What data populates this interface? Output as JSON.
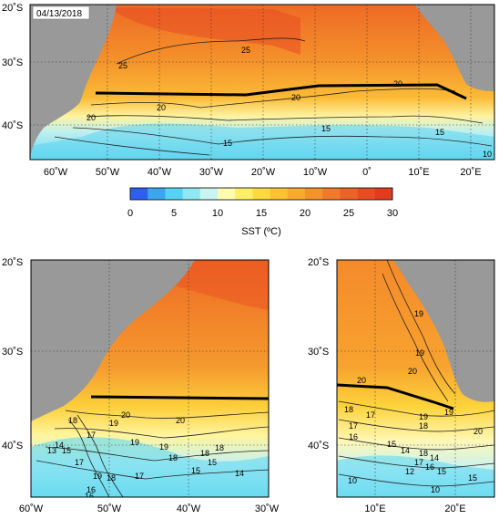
{
  "date_label": "04/13/2018",
  "colorbar": {
    "ticks": [
      "0",
      "5",
      "10",
      "15",
      "20",
      "25",
      "30"
    ],
    "label": "SST (ºC)",
    "colors": [
      "#2f5ff0",
      "#3aa6f2",
      "#56d3f4",
      "#8ee9f2",
      "#c8f4f2",
      "#fffbb0",
      "#ffef66",
      "#ffd93e",
      "#fcc233",
      "#f9aa2f",
      "#f5922c",
      "#f07a29",
      "#ec6425",
      "#e84d22",
      "#e43a1e"
    ]
  },
  "colors": {
    "land": "#999999",
    "line_black": "#000000"
  },
  "top_map": {
    "lat_labels": [
      "20˚S",
      "30˚S",
      "40˚S"
    ],
    "lon_labels": [
      "60˚W",
      "50˚W",
      "40˚W",
      "30˚W",
      "20˚W",
      "10˚W",
      "0˚",
      "10˚E",
      "20˚E"
    ],
    "contour_labels": [
      "25",
      "25",
      "20",
      "20",
      "20",
      "20",
      "15",
      "15",
      "15",
      "10"
    ]
  },
  "bottom_left_map": {
    "lat_labels": [
      "20˚S",
      "30˚S",
      "40˚S"
    ],
    "lon_labels": [
      "60˚W",
      "50˚W",
      "40˚W",
      "30˚W"
    ],
    "contour_labels": [
      "20",
      "19",
      "20",
      "19",
      "18",
      "17",
      "18",
      "15",
      "14",
      "13",
      "19",
      "18",
      "17",
      "16",
      "15",
      "14",
      "18",
      "17",
      "19",
      "18",
      "15",
      "16"
    ]
  },
  "bottom_right_map": {
    "lat_labels": [
      "20˚S",
      "30˚S",
      "40˚S"
    ],
    "lon_labels": [
      "10˚E",
      "20˚E"
    ],
    "contour_labels": [
      "20",
      "19",
      "18",
      "17",
      "19",
      "20",
      "19",
      "18",
      "17",
      "16",
      "15",
      "14",
      "20",
      "19",
      "18",
      "17",
      "16",
      "15",
      "14",
      "12",
      "10",
      "15",
      "10"
    ]
  }
}
